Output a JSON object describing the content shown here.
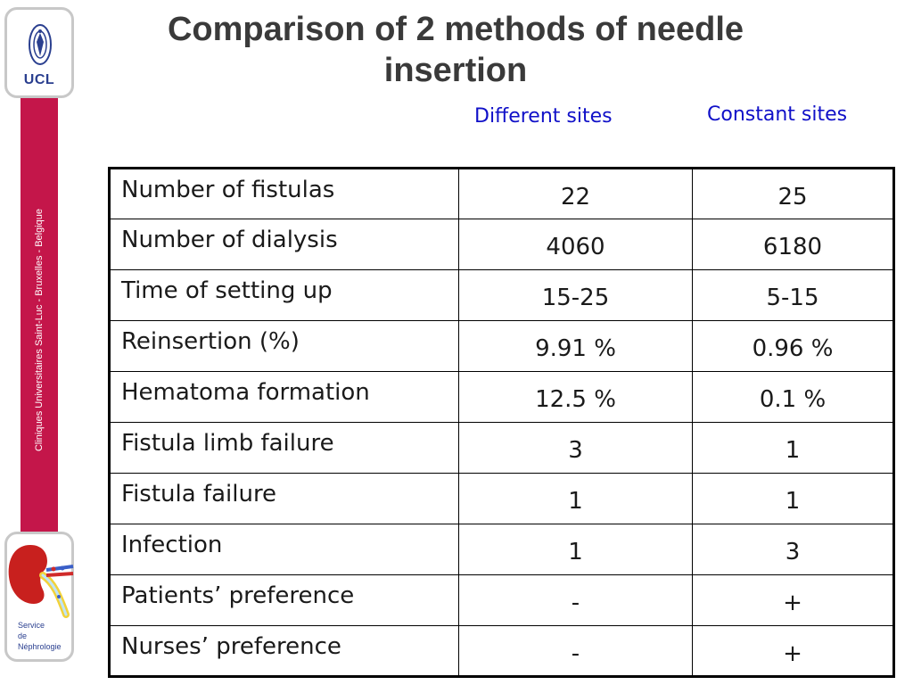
{
  "sidebar": {
    "logo_text": "UCL",
    "vertical_text": "Cliniques Universitaires Saint-Luc - Bruxelles - Belgique",
    "service_lines": [
      "Service",
      "de",
      "Néphrologie"
    ],
    "band_color": "#c4164a",
    "logo_color": "#2a3f8f"
  },
  "title": {
    "line1": "Comparison of 2 methods of needle",
    "line2": "insertion"
  },
  "columns": {
    "col1": "Different sites",
    "col2": "Constant sites",
    "color": "#1010c8"
  },
  "rows": [
    {
      "label": "Number of fistulas",
      "v1": "22",
      "v2": "25"
    },
    {
      "label": "Number of dialysis",
      "v1": "4060",
      "v2": "6180"
    },
    {
      "label": "Time of setting up",
      "v1": "15-25",
      "v2": "5-15"
    },
    {
      "label": "Reinsertion (%)",
      "v1": "9.91 %",
      "v2": "0.96 %"
    },
    {
      "label": "Hematoma formation",
      "v1": "12.5 %",
      "v2": "0.1 %"
    },
    {
      "label": "Fistula limb failure",
      "v1": "3",
      "v2": "1"
    },
    {
      "label": "Fistula failure",
      "v1": "1",
      "v2": "1"
    },
    {
      "label": "Infection",
      "v1": "1",
      "v2": "3"
    },
    {
      "label": "Patients’ preference",
      "v1": "-",
      "v2": "+"
    },
    {
      "label": "Nurses’ preference",
      "v1": "-",
      "v2": "+"
    }
  ]
}
